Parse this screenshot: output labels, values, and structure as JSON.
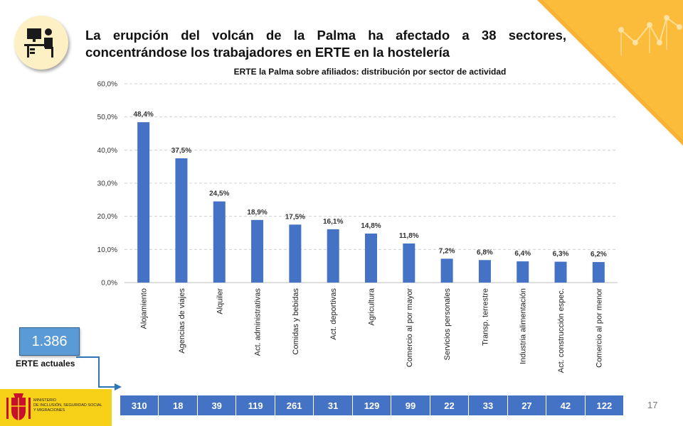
{
  "header": {
    "title": "La erupción del volcán de la Palma ha afectado a 38 sectores, concentrándose los trabajadores en ERTE en la hostelería"
  },
  "chart_data": {
    "type": "bar",
    "title": "ERTE la Palma sobre afiliados:  distribución por sector de actividad",
    "categories": [
      "Alojamiento",
      "Agencias de viajes",
      "Alquiler",
      "Act. administrativas",
      "Comidas y bebidas",
      "Act. deportivas",
      "Agricultura",
      "Comercio al por mayor",
      "Servicios personales",
      "Transp. terrestre",
      "Industria alimentación",
      "Act. construcción espec.",
      "Comercio al por menor"
    ],
    "values": [
      48.4,
      37.5,
      24.5,
      18.9,
      17.5,
      16.1,
      14.8,
      11.8,
      7.2,
      6.8,
      6.4,
      6.3,
      6.2
    ],
    "value_labels": [
      "48,4%",
      "37,5%",
      "24,5%",
      "18,9%",
      "17,5%",
      "16,1%",
      "14,8%",
      "11,8%",
      "7,2%",
      "6,8%",
      "6,4%",
      "6,3%",
      "6,2%"
    ],
    "yticks": [
      0,
      10,
      20,
      30,
      40,
      50,
      60
    ],
    "ytick_labels": [
      "0,0%",
      "10,0%",
      "20,0%",
      "30,0%",
      "40,0%",
      "50,0%",
      "60,0%"
    ],
    "ylim": [
      0,
      60
    ],
    "grid": true,
    "bar_color": "#4472c4"
  },
  "kpi": {
    "value": "1.386",
    "label": "ERTE actuales"
  },
  "counts": [
    "310",
    "18",
    "39",
    "119",
    "261",
    "31",
    "129",
    "99",
    "22",
    "33",
    "27",
    "42",
    "122"
  ],
  "logo": {
    "lines": [
      "MINISTERIO",
      "DE INCLUSIÓN, SEGURIDAD SOCIAL",
      "Y MIGRACIONES"
    ]
  },
  "page_number": "17",
  "colors": {
    "accent_orange": "#f9b233",
    "kpi_blue": "#5b9bd5",
    "bar_blue": "#4472c4",
    "logo_yellow": "#f7d117"
  }
}
